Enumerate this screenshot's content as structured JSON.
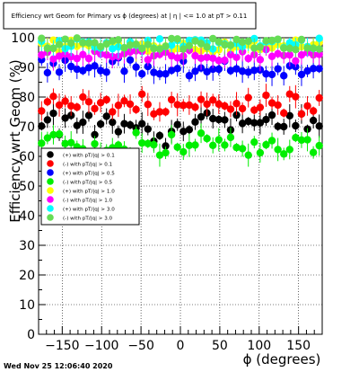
{
  "header": {
    "title": "Efficiency wrt Geom for Primary vs ϕ (degrees) at | η | <= 1.0 at pT > 0.11"
  },
  "footer": {
    "timestamp": "Wed Nov 25 12:06:40 2020"
  },
  "chart_data": {
    "type": "scatter",
    "title": "Efficiency wrt Geom for Primary vs ϕ (degrees) at | η | <= 1.0 at pT > 0.11",
    "xlabel": "ϕ (degrees)",
    "ylabel": "Efficiency wrt Geom (%)",
    "xlim": [
      -180,
      180
    ],
    "ylim": [
      0,
      100
    ],
    "xticks": [
      "−150",
      "−100",
      "−50",
      "0",
      "50",
      "100",
      "150"
    ],
    "yticks": [
      "0",
      "10",
      "20",
      "30",
      "40",
      "50",
      "60",
      "70",
      "80",
      "90",
      "100"
    ],
    "grid": true,
    "legend_position": "left-middle",
    "series": [
      {
        "name": "(+) with pT/|q| > 0.1",
        "color": "#000000",
        "values": [
          70.2,
          72.3,
          74.5,
          67.3,
          72.9,
          73.8,
          70.4,
          71.5,
          73.8,
          67.3,
          70.9,
          73.5,
          71.5,
          68.3,
          71.0,
          70.6,
          69.6,
          71.0,
          69.2,
          65.1,
          67.0,
          63.5,
          68.4,
          70.7,
          68.4,
          69.0,
          71.6,
          73.3,
          74.6,
          72.7,
          72.4,
          72.3,
          68.9,
          73.9,
          71.1,
          71.8,
          71.3,
          71.3,
          72.4,
          73.9,
          70.1,
          70.0,
          73.7,
          70.3,
          74.3,
          69.2,
          72.1,
          70.2
        ]
      },
      {
        "name": "(-) with pT/|q| > 0.1",
        "color": "#ff0000",
        "values": [
          75.3,
          78.4,
          80.2,
          77.3,
          78.6,
          77.0,
          76.6,
          80.0,
          78.4,
          76.1,
          78.1,
          79.1,
          75.0,
          77.2,
          78.7,
          77.6,
          75.8,
          81.0,
          77.5,
          74.3,
          75.0,
          75.0,
          79.1,
          77.4,
          77.2,
          77.3,
          76.6,
          79.2,
          77.6,
          79.0,
          77.6,
          77.0,
          75.9,
          77.8,
          76.1,
          79.8,
          75.6,
          76.5,
          80.6,
          78.0,
          77.3,
          74.6,
          81.0,
          80.1,
          74.3,
          77.0,
          75.3,
          79.7
        ]
      },
      {
        "name": "(+) with pT/|q| > 0.5",
        "color": "#0000ff",
        "values": [
          92.6,
          88.2,
          91.4,
          88.4,
          92.4,
          90.3,
          89.4,
          88.9,
          89.9,
          90.5,
          88.9,
          88.4,
          92.0,
          93.2,
          88.7,
          92.5,
          90.1,
          87.8,
          90.3,
          88.3,
          87.8,
          87.8,
          89.0,
          89.6,
          92.1,
          87.2,
          88.7,
          89.8,
          88.5,
          89.4,
          89.4,
          92.1,
          88.9,
          89.5,
          88.7,
          88.4,
          89.0,
          89.2,
          87.8,
          87.6,
          89.5,
          87.2,
          90.5,
          90.2,
          87.6,
          88.8,
          89.6,
          89.6
        ]
      },
      {
        "name": "(-) with pT/|q| > 0.5",
        "color": "#00ee00",
        "values": [
          64.4,
          66.2,
          67.3,
          67.5,
          64.3,
          64.6,
          63.2,
          62.5,
          60.7,
          64.2,
          60.8,
          62.0,
          62.9,
          63.8,
          62.4,
          59.2,
          68.0,
          64.5,
          64.3,
          63.9,
          60.4,
          61.2,
          67.3,
          63.1,
          61.5,
          63.7,
          63.8,
          67.8,
          66.0,
          63.7,
          65.6,
          63.8,
          66.4,
          63.0,
          62.6,
          60.4,
          64.8,
          61.2,
          63.9,
          65.3,
          62.3,
          60.8,
          62.3,
          66.3,
          65.5,
          65.6,
          61.3,
          63.6
        ]
      },
      {
        "name": "(+) with pT/|q| > 1.0",
        "color": "#ffff00",
        "values": [
          98.1,
          97.1,
          99.2,
          95.2,
          97.0,
          99.1,
          97.1,
          97.9,
          97.3,
          96.8,
          96.4,
          98.2,
          98.5,
          97.9,
          96.4,
          98.6,
          95.8,
          97.8,
          95.5,
          97.2,
          96.5,
          97.2,
          95.3,
          96.3,
          98.1,
          98.7,
          96.0,
          95.6,
          96.3,
          95.2,
          95.9,
          98.5,
          95.6,
          96.9,
          97.2,
          97.5,
          98.9,
          96.0,
          97.6,
          96.6,
          97.7,
          97.2,
          97.4,
          99.2,
          97.0,
          96.6,
          97.6,
          98.4
        ]
      },
      {
        "name": "(-) with pT/|q| > 1.0",
        "color": "#ff00ff",
        "values": [
          94.2,
          95.1,
          92.8,
          93.8,
          94.5,
          93.6,
          93.0,
          94.3,
          93.0,
          95.4,
          94.5,
          94.2,
          93.6,
          93.7,
          94.6,
          95.2,
          95.6,
          95.4,
          92.6,
          93.9,
          94.4,
          95.1,
          93.9,
          93.2,
          93.8,
          95.8,
          93.9,
          93.1,
          93.4,
          93.1,
          92.3,
          92.4,
          94.3,
          93.4,
          95.3,
          93.0,
          94.3,
          92.6,
          96.0,
          93.7,
          94.6,
          94.0,
          94.2,
          92.2,
          94.2,
          95.0,
          94.2,
          94.4
        ]
      },
      {
        "name": "(+) with pT/|q| > 3.0",
        "color": "#00ffff",
        "values": [
          98.8,
          96.5,
          96.5,
          99.0,
          96.3,
          97.1,
          99.6,
          98.5,
          98.6,
          96.8,
          96.5,
          98.3,
          96.3,
          96.9,
          96.6,
          98.6,
          97.5,
          96.4,
          99.1,
          96.5,
          99.6,
          97.0,
          97.5,
          99.1,
          97.1,
          99.1,
          99.3,
          99.2,
          98.3,
          96.2,
          98.4,
          97.9,
          97.4,
          98.1,
          97.0,
          98.8,
          99.7,
          97.2,
          98.6,
          98.7,
          99.4,
          96.7,
          98.3,
          97.6,
          99.2,
          97.0,
          96.4,
          99.8
        ]
      },
      {
        "name": "(-) with pT/|q| > 3.0",
        "color": "#66dd55",
        "values": [
          99.8,
          96.4,
          96.4,
          97.7,
          99.5,
          98.2,
          99.9,
          98.3,
          98.2,
          98.3,
          97.0,
          97.9,
          98.9,
          99.3,
          96.6,
          97.5,
          97.8,
          96.4,
          97.7,
          96.3,
          96.2,
          97.1,
          99.7,
          99.6,
          96.2,
          97.3,
          98.9,
          98.0,
          96.9,
          99.7,
          98.7,
          97.6,
          97.5,
          99.4,
          98.5,
          98.8,
          96.5,
          96.8,
          99.0,
          99.1,
          99.5,
          96.5,
          96.4,
          96.0,
          99.4,
          96.5,
          96.5,
          96.2
        ]
      }
    ]
  }
}
